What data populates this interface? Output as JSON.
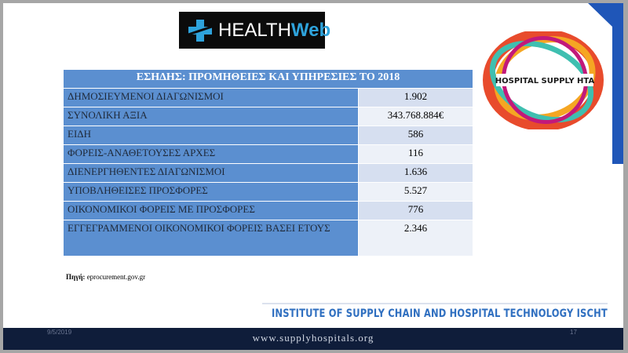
{
  "header": {
    "logo": {
      "part1": "HEALTH",
      "part2": "Web"
    },
    "badge": "HOSPITAL SUPPLY HTA"
  },
  "table": {
    "title": "ΕΣΗΔΗΣ: ΠΡΟΜΗΘΕΙΕΣ ΚΑΙ ΥΠΗΡΕΣΙΕΣ ΤΟ 2018",
    "rows": [
      [
        "ΔΗΜΟΣΙΕΥΜΕΝΟΙ ΔΙΑΓΩΝΙΣΜΟΙ",
        "1.902"
      ],
      [
        "ΣΥΝΟΛΙΚΗ ΑΞΙΑ",
        "343.768.884€"
      ],
      [
        "ΕΙΔΗ",
        "586"
      ],
      [
        "ΦΟΡΕΙΣ-ΑΝΑΘΕΤΟΥΣΕΣ ΑΡΧΕΣ",
        "116"
      ],
      [
        "ΔΙΕΝΕΡΓΗΘΕΝΤΕΣ ΔΙΑΓΩΝΙΣΜΟΙ",
        "1.636"
      ],
      [
        "ΥΠΟΒΛΗΘΕΙΣΕΣ ΠΡΟΣΦΟΡΕΣ",
        "5.527"
      ],
      [
        "ΟΙΚΟΝΟΜΙΚΟΙ ΦΟΡΕΙΣ ΜΕ ΠΡΟΣΦΟΡΕΣ",
        "776"
      ],
      [
        "ΕΓΓΕΓΡΑΜΜΕΝΟΙ ΟΙΚΟΝΟΜΙΚΟΙ ΦΟΡΕΙΣ ΒΑΣΕΙ ΕΤΟΥΣ",
        "2.346"
      ]
    ]
  },
  "source": {
    "label": "Πηγή:",
    "value": "eprocurement.gov.gr"
  },
  "footer": {
    "institute": "INSTITUTE OF SUPPLY CHAIN AND HOSPITAL TECHNOLOGY  ISCHT",
    "url": "www.supplyhospitals.org",
    "date": "9/5/2019",
    "page": "17"
  }
}
